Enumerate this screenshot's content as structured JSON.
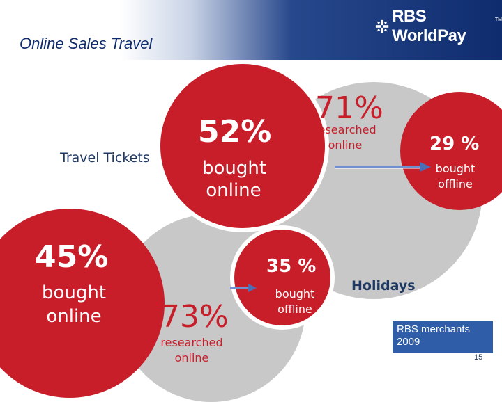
{
  "title": "Online Sales Travel",
  "logo": {
    "text": "RBS WorldPay",
    "tm": "TM"
  },
  "travel_tickets": {
    "label": "Travel Tickets",
    "bought_online_pct": "52%",
    "bought_online_label": "bought online",
    "researched_online_pct": "73%",
    "researched_online_label": "researched online",
    "bought_offline_pct": "35 %",
    "bought_offline_label": "bought offline"
  },
  "holidays": {
    "label": "Holidays",
    "bought_online_pct": "45%",
    "bought_online_label": "bought online",
    "researched_online_pct": "71%",
    "researched_online_label": "researched online",
    "bought_offline_pct": "29 %",
    "bought_offline_label": "bought offline"
  },
  "footnote": "RBS merchants 2009",
  "page_number": "15",
  "colors": {
    "red": "#c81e2a",
    "gray": "#c8c8c8",
    "navy": "#0e2c6e",
    "box_blue": "#2f5da8"
  }
}
